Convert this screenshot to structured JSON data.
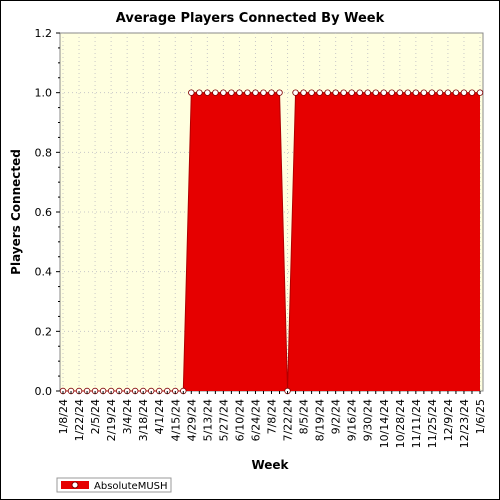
{
  "chart_data": {
    "type": "area",
    "title": "Average Players Connected By Week",
    "xlabel": "Week",
    "ylabel": "Players Connected",
    "ylim": [
      0,
      1.2
    ],
    "yticks": [
      "0.0",
      "0.2",
      "0.4",
      "0.6",
      "0.8",
      "1.0",
      "1.2"
    ],
    "xtick_labels": [
      "1/8/24",
      "1/22/24",
      "2/5/24",
      "2/19/24",
      "3/4/24",
      "3/18/24",
      "4/1/24",
      "4/15/24",
      "4/29/24",
      "5/13/24",
      "5/27/24",
      "6/10/24",
      "6/24/24",
      "7/8/24",
      "7/22/24",
      "8/5/24",
      "8/19/24",
      "9/2/24",
      "9/16/24",
      "9/30/24",
      "10/14/24",
      "10/28/24",
      "11/11/24",
      "11/25/24",
      "12/9/24",
      "12/23/24",
      "1/6/25"
    ],
    "grid": true,
    "legend_position": "bottom-left",
    "colors": {
      "series": "#e60000",
      "background": "#ffffe0",
      "marker": "#ffffff"
    },
    "series": [
      {
        "name": "AbsoluteMUSH",
        "x": [
          "1/8/24",
          "1/15/24",
          "1/22/24",
          "1/29/24",
          "2/5/24",
          "2/12/24",
          "2/19/24",
          "2/26/24",
          "3/4/24",
          "3/11/24",
          "3/18/24",
          "3/25/24",
          "4/1/24",
          "4/8/24",
          "4/15/24",
          "4/22/24",
          "4/29/24",
          "5/6/24",
          "5/13/24",
          "5/20/24",
          "5/27/24",
          "6/3/24",
          "6/10/24",
          "6/17/24",
          "6/24/24",
          "7/1/24",
          "7/8/24",
          "7/15/24",
          "7/22/24",
          "7/29/24",
          "8/5/24",
          "8/12/24",
          "8/19/24",
          "8/26/24",
          "9/2/24",
          "9/9/24",
          "9/16/24",
          "9/23/24",
          "9/30/24",
          "10/7/24",
          "10/14/24",
          "10/21/24",
          "10/28/24",
          "11/4/24",
          "11/11/24",
          "11/18/24",
          "11/25/24",
          "12/2/24",
          "12/9/24",
          "12/16/24",
          "12/23/24",
          "12/30/24",
          "1/6/25"
        ],
        "values": [
          0,
          0,
          0,
          0,
          0,
          0,
          0,
          0,
          0,
          0,
          0,
          0,
          0,
          0,
          0,
          0,
          1,
          1,
          1,
          1,
          1,
          1,
          1,
          1,
          1,
          1,
          1,
          1,
          0,
          1,
          1,
          1,
          1,
          1,
          1,
          1,
          1,
          1,
          1,
          1,
          1,
          1,
          1,
          1,
          1,
          1,
          1,
          1,
          1,
          1,
          1,
          1,
          1
        ]
      }
    ]
  }
}
